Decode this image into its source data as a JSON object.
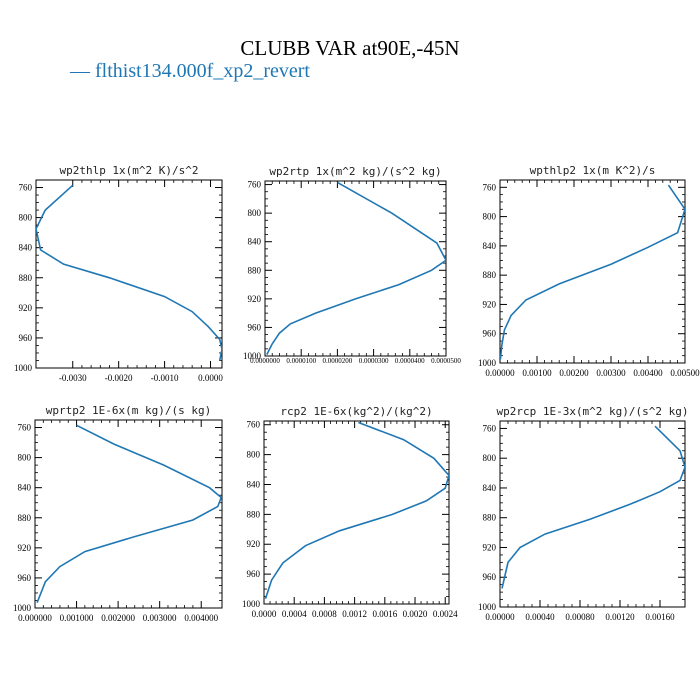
{
  "title": "CLUBB VAR at90E,-45N",
  "legend": {
    "dash": "—",
    "label": "flthist134.000f_xp2_revert",
    "color": "#1f77b4"
  },
  "chart_data": [
    {
      "type": "line",
      "title": "wp2thlp   1x(m^2 K)/s^2",
      "xlim": [
        -0.0038,
        0.00025
      ],
      "ylim": [
        1000,
        750
      ],
      "xticks": [
        -0.003,
        -0.002,
        -0.001,
        0.0
      ],
      "xtick_labels": [
        "-0.0030",
        "-0.0020",
        "-0.0010",
        "0.0000"
      ],
      "yticks": [
        760,
        800,
        840,
        880,
        920,
        960,
        1000
      ],
      "series": [
        {
          "color": "#1f77b4",
          "x": [
            -0.003,
            -0.0036,
            -0.0038,
            -0.0037,
            -0.0032,
            -0.0022,
            -0.001,
            -0.0004,
            -5e-05,
            0.0002,
            0.00025,
            0.0002
          ],
          "y": [
            757,
            790,
            815,
            843,
            862,
            880,
            905,
            925,
            945,
            962,
            975,
            990
          ]
        }
      ]
    },
    {
      "type": "line",
      "title": "wp2rtp   1x(m^2 kg)/(s^2 kg)",
      "xlim": [
        0.0,
        5e-05
      ],
      "ylim": [
        1000,
        755
      ],
      "xticks": [
        0.0,
        1e-05,
        2e-05,
        3e-05,
        4e-05,
        5e-05
      ],
      "xtick_labels": [
        "0.0000000",
        "0.0000100",
        "0.0000200",
        "0.0000300",
        "0.0000400",
        "0.0000500"
      ],
      "yticks": [
        760,
        800,
        840,
        880,
        920,
        960,
        1000
      ],
      "series": [
        {
          "color": "#1f77b4",
          "x": [
            2e-05,
            3.5e-05,
            4.75e-05,
            5e-05,
            4.6e-05,
            3.7e-05,
            2.5e-05,
            1.4e-05,
            7e-06,
            4e-06,
            2e-06,
            5e-07
          ],
          "y": [
            757,
            800,
            842,
            866,
            880,
            900,
            920,
            940,
            955,
            968,
            983,
            998
          ]
        }
      ]
    },
    {
      "type": "line",
      "title": "wpthlp2   1x(m K^2)/s",
      "xlim": [
        0.0,
        0.005
      ],
      "ylim": [
        1000,
        750
      ],
      "xticks": [
        0.0,
        0.001,
        0.002,
        0.003,
        0.004,
        0.005
      ],
      "xtick_labels": [
        "0.00000",
        "0.00100",
        "0.00200",
        "0.00300",
        "0.00400",
        "0.00500"
      ],
      "yticks": [
        760,
        800,
        840,
        880,
        920,
        960,
        1000
      ],
      "series": [
        {
          "color": "#1f77b4",
          "x": [
            0.00455,
            0.005,
            0.0048,
            0.004,
            0.003,
            0.0016,
            0.0007,
            0.0003,
            0.00012,
            5e-05,
            1e-05
          ],
          "y": [
            757,
            790,
            822,
            842,
            865,
            892,
            914,
            935,
            955,
            975,
            995
          ]
        }
      ]
    },
    {
      "type": "line",
      "title": "wprtp2   1E-6x(m kg)/(s kg)",
      "xlim": [
        0.0,
        0.0045
      ],
      "ylim": [
        1000,
        750
      ],
      "xticks": [
        0.0,
        0.001,
        0.002,
        0.003,
        0.004
      ],
      "xtick_labels": [
        "0.000000",
        "0.001000",
        "0.002000",
        "0.003000",
        "0.004000"
      ],
      "yticks": [
        760,
        800,
        840,
        880,
        920,
        960,
        1000
      ],
      "series": [
        {
          "color": "#1f77b4",
          "x": [
            0.001,
            0.0019,
            0.0031,
            0.0042,
            0.00448,
            0.0044,
            0.0038,
            0.0024,
            0.0012,
            0.0006,
            0.00025,
            5e-05
          ],
          "y": [
            757,
            782,
            810,
            840,
            853,
            865,
            883,
            905,
            925,
            945,
            965,
            993
          ]
        }
      ]
    },
    {
      "type": "line",
      "title": "rcp2   1E-6x(kg^2)/(kg^2)",
      "xlim": [
        0.0,
        0.00245
      ],
      "ylim": [
        1000,
        755
      ],
      "xticks": [
        0.0,
        0.0004,
        0.0008,
        0.0012,
        0.0016,
        0.002,
        0.0024
      ],
      "xtick_labels": [
        "0.0000",
        "0.0004",
        "0.0008",
        "0.0012",
        "0.0016",
        "0.0020",
        "0.0024"
      ],
      "yticks": [
        760,
        800,
        840,
        880,
        920,
        960,
        1000
      ],
      "series": [
        {
          "color": "#1f77b4",
          "x": [
            0.00125,
            0.00185,
            0.00225,
            0.00245,
            0.0024,
            0.00215,
            0.0017,
            0.001,
            0.00055,
            0.00025,
            0.0001,
            2e-05
          ],
          "y": [
            757,
            780,
            805,
            828,
            845,
            862,
            880,
            902,
            922,
            945,
            968,
            993
          ]
        }
      ]
    },
    {
      "type": "line",
      "title": "wp2rcp   1E-3x(m^2 kg)/(s^2 kg)",
      "xlim": [
        0.0,
        0.00185
      ],
      "ylim": [
        1000,
        750
      ],
      "xticks": [
        0.0,
        0.0004,
        0.0008,
        0.0012,
        0.0016
      ],
      "xtick_labels": [
        "0.00000",
        "0.00040",
        "0.00080",
        "0.00120",
        "0.00160"
      ],
      "yticks": [
        760,
        800,
        840,
        880,
        920,
        960,
        1000
      ],
      "series": [
        {
          "color": "#1f77b4",
          "x": [
            0.00155,
            0.0018,
            0.00185,
            0.0018,
            0.0016,
            0.0013,
            0.0009,
            0.00045,
            0.0002,
            8e-05,
            2e-05
          ],
          "y": [
            757,
            790,
            812,
            830,
            845,
            862,
            882,
            902,
            920,
            940,
            975
          ]
        }
      ]
    }
  ]
}
